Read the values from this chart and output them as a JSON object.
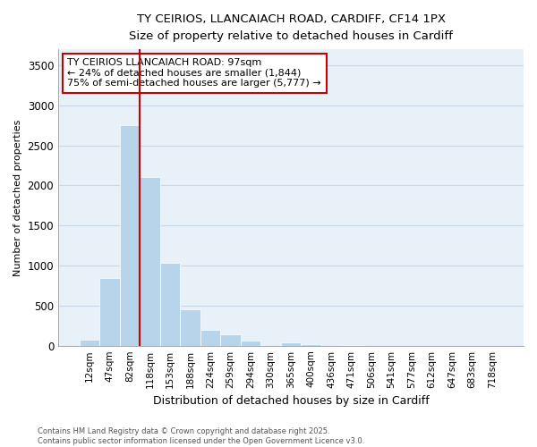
{
  "title_line1": "TY CEIRIOS, LLANCAIACH ROAD, CARDIFF, CF14 1PX",
  "title_line2": "Size of property relative to detached houses in Cardiff",
  "xlabel": "Distribution of detached houses by size in Cardiff",
  "ylabel": "Number of detached properties",
  "bar_labels": [
    "12sqm",
    "47sqm",
    "82sqm",
    "118sqm",
    "153sqm",
    "188sqm",
    "224sqm",
    "259sqm",
    "294sqm",
    "330sqm",
    "365sqm",
    "400sqm",
    "436sqm",
    "471sqm",
    "506sqm",
    "541sqm",
    "577sqm",
    "612sqm",
    "647sqm",
    "683sqm",
    "718sqm"
  ],
  "bar_values": [
    75,
    850,
    2750,
    2100,
    1030,
    450,
    200,
    145,
    60,
    0,
    40,
    20,
    0,
    10,
    0,
    0,
    0,
    0,
    0,
    0,
    0
  ],
  "bar_color": "#b8d4ea",
  "grid_color": "#c8d8e8",
  "background_color": "#e8f0f8",
  "red_line_x": 2.5,
  "annotation_text": "TY CEIRIOS LLANCAIACH ROAD: 97sqm\n← 24% of detached houses are smaller (1,844)\n75% of semi-detached houses are larger (5,777) →",
  "annotation_box_color": "#ffffff",
  "annotation_border_color": "#cc0000",
  "ylim": [
    0,
    3700
  ],
  "yticks": [
    0,
    500,
    1000,
    1500,
    2000,
    2500,
    3000,
    3500
  ],
  "footer_line1": "Contains HM Land Registry data © Crown copyright and database right 2025.",
  "footer_line2": "Contains public sector information licensed under the Open Government Licence v3.0."
}
